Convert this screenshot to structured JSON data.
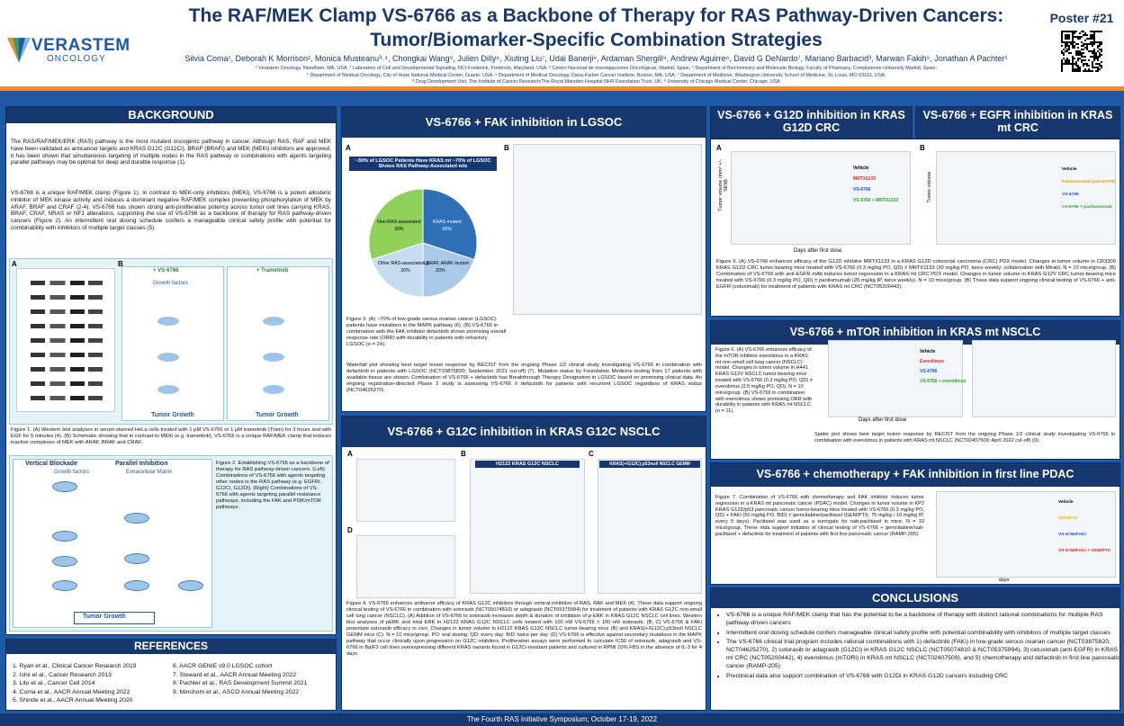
{
  "header": {
    "logo_main": "VERASTEM",
    "logo_sub": "ONCOLOGY",
    "title_line1": "The RAF/MEK Clamp VS-6766 as a Backbone of Therapy for RAS Pathway-Driven Cancers:",
    "title_line2": "Tumor/Biomarker-Specific Combination Strategies",
    "authors": "Silvia Coma¹, Deborah K Morrison², Monica Musteanu³˒⁴, Chongkai Wang⁵, Julien Dilly⁶, Xiuting Liu⁷, Udai Banerji⁸, Ardaman Shergill⁹, Andrew Aguirre⁶, David G DeNardo⁷, Mariano Barbacid³, Marwan Fakih⁵, Jonathan A Pachter¹",
    "affiliations": [
      "¹ Verastem Oncology, Needham, MA, USA; ² Laboratory of Cell and Developmental Signaling, NCI-Frederick, Frederick, Maryland, USA; ³ Centro Nacional de Investigaciones Oncológicas, Madrid, Spain; ⁴ Department of Biochemistry and Molecular Biology, Faculty of Pharmacy, Complutense University Madrid, Spain;",
      "⁵ Department of Medical Oncology, City of Hope National Medical Center, Duarte, USA; ⁶ Department of Medical Oncology, Dana-Farber Cancer Institute, Boston, MA, USA; ⁷ Department of Medicine, Washington University School of Medicine, St. Louis, MO 63110, USA;",
      "⁸ Drug Development Unit, The Institute of Cancer Research/The Royal Marsden Hospital NHS Foundation Trust, UK; ⁹ University of Chicago Medical Center, Chicago, USA"
    ],
    "poster_number": "Poster #21"
  },
  "background": {
    "heading": "BACKGROUND",
    "paragraphs": [
      "The RAS/RAF/MEK/ERK (RAS) pathway is the most mutated oncogenic pathway in cancer. Although RAS, RAF and MEK have been validated as anticancer targets and KRAS G12C (G12Ci), BRAF (BRAFi) and MEK (MEKi) inhibitors are approved, it has been shown that simultaneous targeting of multiple nodes in the RAS pathway or combinations with agents targeting parallel pathways may be optimal for deep and durable response (1).",
      "VS-6766 is a unique RAF/MEK clamp (Figure 1). In contrast to MEK-only inhibitors (MEKi), VS-6766 is a potent allosteric inhibitor of MEK kinase activity and induces a dominant negative RAF/MEK complex preventing phosphorylation of MEK by ARAF, BRAF and CRAF (2-4). VS-6766 has shown strong anti-proliferative potency across tumor cell lines carrying KRAS, BRAF, CRAF, NRAS or NF1 alterations, supporting the use of VS-6766 as a backbone of therapy for RAS pathway-driven cancers (Figure 2). An intermittent oral dosing schedule confers a manageable clinical safety profile with potential for combinability with inhibitors of multiple target classes (5)."
    ],
    "fig1_panels": [
      "A",
      "B"
    ],
    "fig1_labels": [
      "+ VS-6766",
      "+ Trametinib",
      "Growth factors",
      "Tumor Growth",
      "Tumor Growth"
    ],
    "fig1_caption": "Figure 1. (A) Western blot analyses in serum-starved HeLa cells treated with 1 µM VS-6766 or 1 µM trametinib (Tram) for 3 hours and with EGF for 5 minutes (4). (B) Schematic showing that in contrast to MEKi (e.g. trametinib), VS-6766 is a unique RAF/MEK clamp that induces inactive complexes of MEK with ARAF, BRAF and CRAF.",
    "fig2_labels": [
      "Vertical Blockade",
      "Parallel Inhibition",
      "Growth factors",
      "Extracellular Matrix",
      "Tumor Growth"
    ],
    "fig2_caption": "Figure 2. Establishing VS-6766 as a backbone of therapy for RAS pathway-driven cancers. (Left) Combinations of VS-6766 with agents targeting other nodes in the RAS pathway (e.g. EGFRi, G12Ci, G12Di). (Right) Combinations of VS-6766 with agents targeting parallel resistance pathways, including the FAK and PI3K/mTOR pathways."
  },
  "references": {
    "heading": "REFERENCES",
    "items": [
      "1. Ryan et al., Clinical Cancer Research 2019",
      "2. Ishii et al., Cancer Research 2013",
      "3. Lito et al., Cancer Cell 2014",
      "4. Coma et al., AACR Annual Meeting 2022",
      "5. Shinde et al., AACR Annual Meeting 2020",
      "6. AACR GENIE v9.0 LGSOC cohort",
      "7. Steward et al., AACR Annual Meeting 2022",
      "8. Pachter et al., RAS Development Summit 2021",
      "9. Minchom et al., ASCO Annual Meeting 2022"
    ]
  },
  "lgsoc": {
    "heading": "VS-6766 + FAK inhibition in LGSOC",
    "panels": [
      "A",
      "B"
    ],
    "pie": {
      "title": "~30% of LGSOC Patients Have KRAS mt ~70% of LGSOC Shows RAS Pathway-Associated mts",
      "categories": [
        "KRAS mutant",
        "NRAS,BRAF, ARAF mutant",
        "Other RAS-associated gene mutation",
        "Non-RAS-associated"
      ],
      "values": [
        30,
        20,
        20,
        30
      ],
      "value_labels": [
        "30%",
        "20%",
        "20%",
        "30%"
      ],
      "colors": [
        "#2f6fb7",
        "#a9c9ea",
        "#c7dcf1",
        "#8fd05a"
      ]
    },
    "caption": "Figure 3. (A) ~70% of low-grade serous ovarian cancer (LGSOC) patients have mutations in the MAPK pathway (6). (B) VS-6766 in combination with the FAK inhibitor defactinib shows promising overall response rate (ORR) with durability in patients with refractory LGSOC (n = 24).",
    "waterfall_text": "Waterfall plot showing best target lesion response by RECIST from the ongoing Phase 1/2 clinical study investigating VS-6766 in combination with defactinib in patients with LGSOC (NCT03875820; September 2021 cut-off) (7). Mutation status by Foundation Medicine testing from 17 patients with available tissue are shown. Combination of VS-6766 + defactinib has Breakthrough Therapy Designation in LGSOC based on promising clinical data. An ongoing registration-directed Phase 2 study is assessing VS-6766 ± defactinib for patients with recurrent LGSOC regardless of KRAS status (NCT04625270)."
  },
  "g12c": {
    "heading": "VS-6766 + G12C inhibition in KRAS G12C NSCLC",
    "panels": [
      "A",
      "B",
      "C",
      "D"
    ],
    "panel_titles": [
      "H2122 KRAS G12C NSCLC",
      "KRAS(+/G12C);p53null NSCLC GEMM"
    ],
    "caption": "Figure 4. VS-6766 enhances antitumor efficacy of KRAS G12C inhibitors through vertical inhibition of RAS, RAF and MEK (4). These data support ongoing clinical testing of VS-6766 in combination with sotorasib (NCT05074810) or adagrasib (NCT05375994) for treatment of patients with KRAS G12C non-small cell lung cancer (NSCLC). (A) Addition of VS-6766 to sotorasib increases depth & duration of inhibition of p-ERK in KRAS G12C NSCLC cell lines. Western blot analyses of pERK and total ERK in H2122 KRAS G12C NSCLC cells treated with 100 nM VS-6766 ± 100 nM sotorasib. (B, C) VS-6766 & FAKi potentiate sotorasib efficacy in vivo. Changes in tumor volume in H2122 KRAS G12C NSCLC tumor-bearing mice (B) and KRAS(+/G12C);p53null NSCLC GEMM mice (C). N = 10 mice/group. PO: oral dosing; QD: every day; BID: twice per day. (D) VS-6766 is effective against secondary mutations in the MAPK pathway that occur clinically upon progression on G12C inhibitors. Proliferation assays were performed to calculate IC50 of sotorasib, adagrasib and VS-6766 in Ba/F3 cell lines overexpressing different KRAS variants found in G12Ci-resistant patients and cultured in RPMI 10% FBS in the absence of IL-3 for 4 days."
  },
  "g12d": {
    "heading": "VS-6766 + G12D inhibition in KRAS G12D CRC",
    "x_label": "Days after first dose",
    "y_label": "Tumor volume (mm³ +/- SEM)",
    "series_labels": [
      "Vehicle",
      "MRTX1133",
      "VS-6766",
      "VS-6766 + MRTX1133"
    ]
  },
  "egfr": {
    "heading": "VS-6766 + EGFR inhibition in KRAS mt CRC",
    "y_label": "Tumor volume",
    "series_labels": [
      "Vehicle",
      "Panitumumab (anti-EGFR)",
      "VS-6766",
      "VS-6766 + panitumumab"
    ]
  },
  "fig5_caption": "Figure 5. (A) VS-6766 enhances efficacy of the G12D inhibitor MRTX1133 in a KRAS G12D colorectal carcinoma (CRC) PDX model. Changes in tumor volume in CR3300 KRAS G12D CRC tumor-bearing mice treated with VS-6766 (0.3 mg/kg PO, QD) ± MRTX1133 (30 mg/kg PO, twice weekly; collaboration with Mirati). N = 10 mice/group. (B) Combination of VS-6766 with anti-EGFR mAb induces tumor regression in a KRAS mt CRC PDX model. Changes in tumor volume in KRAS G12V CRC tumor-bearing mice treated with VS-6766 (0.3 mg/kg PO, QD) ± panitumumab (20 mg/kg IP, twice weekly). N = 10 mice/group. (B) These data support ongoing clinical testing of VS-6766 + anti-EGFR (cetuximab) for treatment of patients with KRAS mt CRC (NCT05200442).",
  "mtor": {
    "heading": "VS-6766 + mTOR inhibition in KRAS mt NSCLC",
    "caption": "Figure 6. (A) VS-6766 enhances efficacy of the mTOR inhibitor everolimus in a KRAS mt non-small cell lung cancer (NSCLC) model. Changes in tumor volume in H441 KRAS G12V NSCLC tumor-bearing mice treated with VS-6766 (0.3 mg/kg PO, QD) ± everolimus (2.5 mg/kg PO, QD). N = 10 mice/group. (B) VS-6766 in combination with everolimus shows promising ORR with durability in patients with KRAS mt NSCLC (n = 11).",
    "bottom_text": "Spider plot shows best target lesion response by RECIST from the ongoing Phase 1/2 clinical study investigating VS-6766 in combination with everolimus in patients with KRAS mt NSCLC (NCT02407509; April 2022 cut-off) (9).",
    "x_label": "Days after first dose",
    "series_labels": [
      "Vehicle",
      "Everolimus",
      "VS-6766",
      "VS-6766 + everolimus"
    ],
    "panels": [
      "A",
      "B"
    ]
  },
  "pdac": {
    "heading": "VS-6766 + chemotherapy + FAK inhibition in first line PDAC",
    "caption": "Figure 7. Combination of VS-6766 with chemotherapy and FAK inhibitor induces tumor regression in a KRAS mt pancreatic cancer (PDAC) model. Changes in tumor volume in KP2 KRAS G12D/p53 pancreatic cancer tumor-bearing mice treated with VS-6766 (0.3 mg/kg PO, QD) + FAKi (50 mg/kg PO, BID) ± gemcitabine/paclitaxel (GEM/PTX; 75 mg/kg / 10 mg/kg IP, every 5 days). Paclitaxel was used as a surrogate for nab-paclitaxel in mice. N = 10 mice/group. These data support initiation of clinical testing of VS-6766 + gemcitabine/nab-paclitaxel + defactinib for treatment of patients with first line pancreatic cancer (RAMP-205).",
    "x_label": "days",
    "series_labels": [
      "Vehicle",
      "GEM/PTX",
      "VS-6766/FAKi",
      "VS-6766/FAKi + GEM/PTX"
    ]
  },
  "conclusions": {
    "heading": "CONCLUSIONS",
    "items": [
      "VS-6766 is a unique RAF/MEK clamp that has the potential to be a backbone of therapy with distinct rational combinations for multiple RAS pathway-driven cancers",
      "Intermittent oral dosing schedule confers manageable clinical safety profile with potential combinability with inhibitors of multiple target classes",
      "The VS-6766 clinical trial program includes rational combinations with 1) defactinib (FAKi) in low-grade serous ovarian cancer (NCT03875820, NCT04625270), 2) sotorasib or adagrasib (G12Ci) in KRAS G12C NSCLC (NCT05074810 & NCT05375994), 3) cetuximab (anti-EGFR) in KRAS mt CRC (NCT05200442), 4) everolimus (mTORi) in KRAS mt NSCLC (NCT02407509), and 5) chemotherapy and defactinib in first line pancreatic cancer (RAMP-205)",
      "Preclinical data also support combination of VS-6766 with G12Di in KRAS G12D cancers including CRC"
    ]
  },
  "footer": "The Fourth RAS Initiative Symposium; October 17-19, 2022"
}
